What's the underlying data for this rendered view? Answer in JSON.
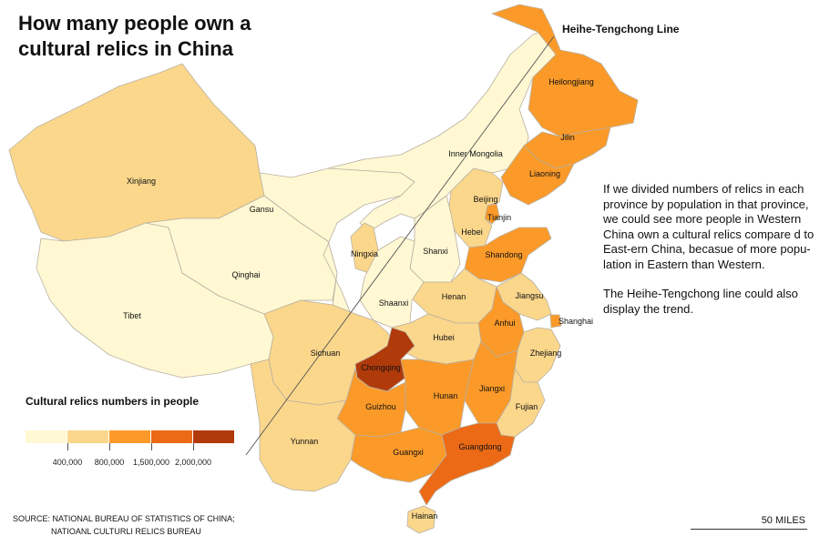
{
  "title": "How many people own a cultural relics in China",
  "line_label": "Heihe-Tengchong Line",
  "description": [
    "If we divided numbers of relics in each province by population in that province, we could see more people in Western China own a cultural relics compare d to East-ern China, becasue of more popu-lation in Eastern than Western.",
    "The Heihe-Tengchong line could also display the trend."
  ],
  "legend": {
    "title": "Cultural relics numbers in people",
    "colors": [
      "#fff8d3",
      "#fbd78c",
      "#fb9a29",
      "#ec6a16",
      "#b13a0b"
    ],
    "breaks": [
      "400,000",
      "800,000",
      "1,500,000",
      "2,000,000"
    ]
  },
  "source": [
    "SOURCE: NATIONAL BUREAU OF STATISTICS OF CHINA;",
    "NATIOANL CULTURLI RELICS BUREAU"
  ],
  "scale_label": "50 MILES",
  "provinces": {
    "xinjiang": {
      "label": "Xinjiang",
      "class": 1
    },
    "tibet": {
      "label": "Tibet",
      "class": 0
    },
    "qinghai": {
      "label": "Qinghai",
      "class": 0
    },
    "gansu": {
      "label": "Gansu",
      "class": 0
    },
    "inner_mongolia": {
      "label": "Inner Mongolia",
      "class": 0
    },
    "heilongjiang": {
      "label": "Heilongjiang",
      "class": 2
    },
    "jilin": {
      "label": "Jilin",
      "class": 2
    },
    "liaoning": {
      "label": "Liaoning",
      "class": 2
    },
    "beijing": {
      "label": "Beijing",
      "class": 1
    },
    "tianjin": {
      "label": "Tianjin",
      "class": 2
    },
    "hebei": {
      "label": "Hebei",
      "class": 1
    },
    "shanxi": {
      "label": "Shanxi",
      "class": 0
    },
    "ningxia": {
      "label": "Ningxia",
      "class": 1
    },
    "shandong": {
      "label": "Shandong",
      "class": 2
    },
    "henan": {
      "label": "Henan",
      "class": 1
    },
    "shaanxi": {
      "label": "Shaanxi",
      "class": 0
    },
    "jiangsu": {
      "label": "Jiangsu",
      "class": 1
    },
    "anhui": {
      "label": "Anhui",
      "class": 2
    },
    "shanghai": {
      "label": "Shanghai",
      "class": 2
    },
    "hubei": {
      "label": "Hubei",
      "class": 1
    },
    "sichuan": {
      "label": "Sichuan",
      "class": 1
    },
    "chongqing": {
      "label": "Chongqing",
      "class": 4
    },
    "zhejiang": {
      "label": "Zhejiang",
      "class": 1
    },
    "jiangxi": {
      "label": "Jiangxi",
      "class": 2
    },
    "hunan": {
      "label": "Hunan",
      "class": 2
    },
    "guizhou": {
      "label": "Guizhou",
      "class": 2
    },
    "fujian": {
      "label": "Fujian",
      "class": 1
    },
    "yunnan": {
      "label": "Yunnan",
      "class": 1
    },
    "guangxi": {
      "label": "Guangxi",
      "class": 2
    },
    "guangdong": {
      "label": "Guangdong",
      "class": 3
    },
    "hainan": {
      "label": "Hainan",
      "class": 1
    }
  }
}
